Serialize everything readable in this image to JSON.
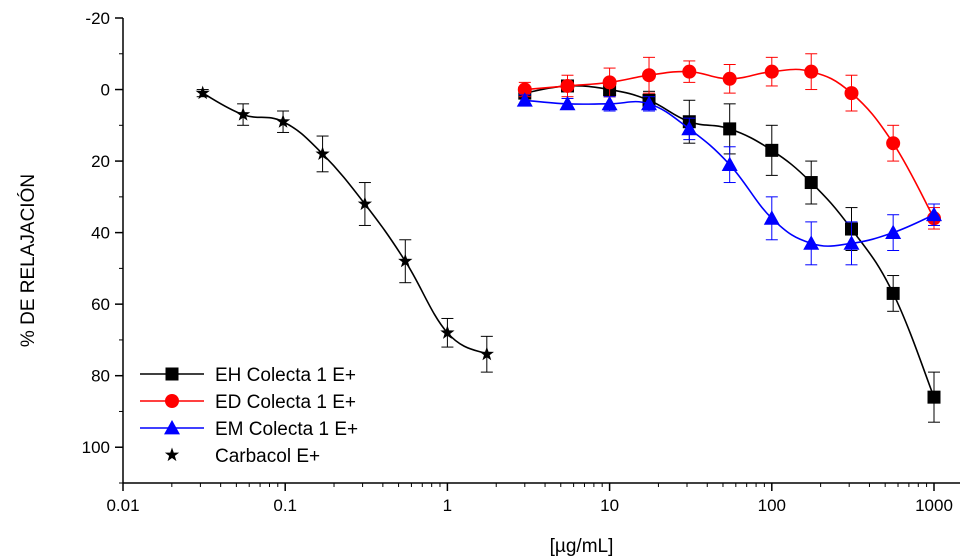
{
  "chart_data": {
    "type": "line",
    "x_scale": "log",
    "xlabel": "[µg/mL]",
    "ylabel": "% DE RELAJACIÓN",
    "xlim": [
      0.01,
      2000
    ],
    "ylim": [
      110,
      -20
    ],
    "y_inverted": true,
    "x_ticks": [
      {
        "value": 0.01,
        "label": "0.01"
      },
      {
        "value": 0.1,
        "label": "0.1"
      },
      {
        "value": 1,
        "label": "1"
      },
      {
        "value": 10,
        "label": "10"
      },
      {
        "value": 100,
        "label": "100"
      },
      {
        "value": 1000,
        "label": "1000"
      }
    ],
    "y_ticks": [
      {
        "value": -20,
        "label": "-20"
      },
      {
        "value": 0,
        "label": "0"
      },
      {
        "value": 20,
        "label": "20"
      },
      {
        "value": 40,
        "label": "40"
      },
      {
        "value": 60,
        "label": "60"
      },
      {
        "value": 80,
        "label": "80"
      },
      {
        "value": 100,
        "label": "100"
      }
    ],
    "grid": false,
    "legend_position": "bottom-left",
    "series": [
      {
        "name": "EH Colecta 1 E+",
        "color": "#000000",
        "marker": "square",
        "x": [
          3,
          5.5,
          10,
          17.5,
          31,
          55,
          100,
          175,
          310,
          560,
          1000
        ],
        "y": [
          1,
          -1,
          0,
          3,
          9,
          11,
          17,
          26,
          39,
          57,
          86
        ],
        "err": [
          1.5,
          1.5,
          2,
          2.5,
          6,
          7,
          7,
          6,
          6,
          5,
          7
        ]
      },
      {
        "name": "ED Colecta 1 E+",
        "color": "#ff0000",
        "marker": "circle",
        "x": [
          3,
          5.5,
          10,
          17.5,
          31,
          55,
          100,
          175,
          310,
          560,
          1000
        ],
        "y": [
          0,
          -1,
          -2,
          -4,
          -5,
          -3,
          -5,
          -5,
          1,
          15,
          36
        ],
        "err": [
          2,
          3,
          4,
          5,
          3,
          4,
          4,
          5,
          5,
          5,
          3
        ]
      },
      {
        "name": "EM Colecta 1 E+",
        "color": "#0000ff",
        "marker": "triangle",
        "x": [
          3,
          5.5,
          10,
          17.5,
          31,
          55,
          100,
          175,
          310,
          560,
          1000
        ],
        "y": [
          3,
          4,
          4,
          4,
          11,
          21,
          36,
          43,
          43,
          40,
          35
        ],
        "err": [
          1.5,
          1.5,
          2,
          2,
          3,
          5,
          6,
          6,
          6,
          5,
          3
        ]
      },
      {
        "name": "Carbacol E+",
        "color": "#000000",
        "marker": "star",
        "x": [
          0.031,
          0.055,
          0.097,
          0.17,
          0.31,
          0.55,
          1,
          1.75
        ],
        "y": [
          1,
          7,
          9,
          18,
          32,
          48,
          68,
          74
        ],
        "err": [
          1,
          3,
          3,
          5,
          6,
          6,
          4,
          5
        ]
      }
    ]
  }
}
